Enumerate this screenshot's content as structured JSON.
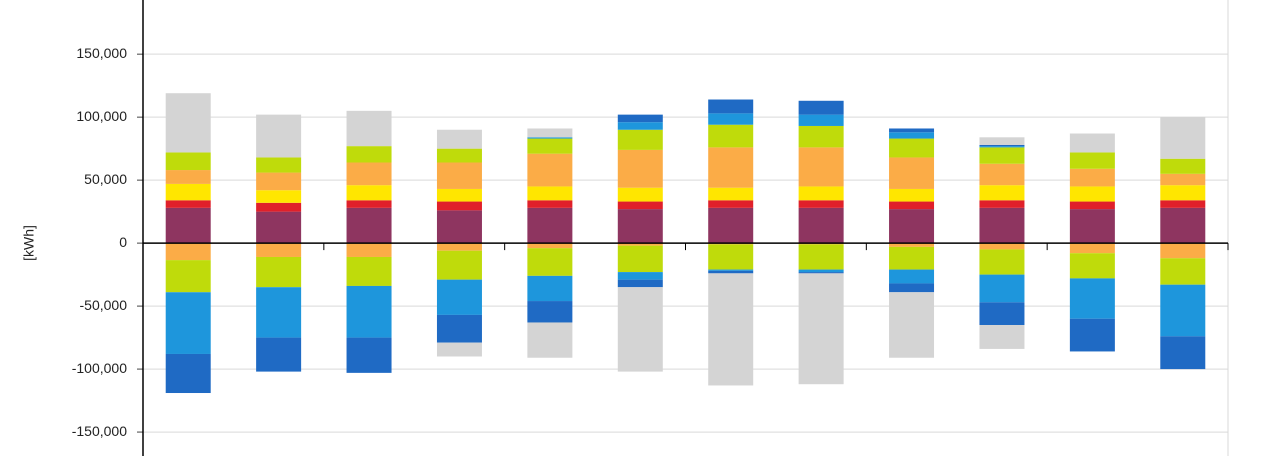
{
  "chart_data": {
    "type": "stacked_bar",
    "y_label": "[kWh]",
    "categories": [
      null,
      null,
      null,
      null,
      null,
      null,
      null,
      null,
      null,
      null,
      null,
      null
    ],
    "ylim": [
      -169000,
      193000
    ],
    "yticks": [
      {
        "value": -150000,
        "label": "-150,000"
      },
      {
        "value": -100000,
        "label": "-100,000"
      },
      {
        "value": -50000,
        "label": "-50,000"
      },
      0,
      {
        "value": 50000,
        "label": "50,000"
      },
      {
        "value": 100000,
        "label": "100,000"
      },
      {
        "value": 150000,
        "label": "150,000"
      }
    ],
    "grid": true,
    "series": [
      {
        "color": "#8e3560",
        "values": [
          28000,
          25000,
          28000,
          26000,
          28000,
          27000,
          28000,
          28000,
          27000,
          28000,
          27000,
          28000
        ]
      },
      {
        "color": "#e0202a",
        "values": [
          6000,
          7000,
          6000,
          7000,
          6000,
          6000,
          6000,
          6000,
          6000,
          6000,
          6000,
          6000
        ]
      },
      {
        "color": "#ffe600",
        "values": [
          13000,
          10000,
          12000,
          10000,
          11000,
          11000,
          10000,
          11000,
          10000,
          12000,
          12000,
          12000
        ]
      },
      {
        "color": "#fbac47",
        "values": [
          11000,
          14000,
          18000,
          21000,
          26000,
          30000,
          32000,
          31000,
          25000,
          17000,
          14000,
          9000
        ]
      },
      {
        "color": "#bfdb0b",
        "values": [
          14000,
          12000,
          13000,
          11000,
          12000,
          16000,
          18000,
          17000,
          15000,
          13000,
          13000,
          12000
        ]
      },
      {
        "color": "#1e96dc",
        "values": [
          0,
          0,
          0,
          0,
          1000,
          6000,
          9000,
          9000,
          5000,
          1000,
          0,
          0
        ]
      },
      {
        "color": "#1f6ac4",
        "values": [
          0,
          0,
          0,
          0,
          0,
          6000,
          11000,
          11000,
          3000,
          1000,
          0,
          0
        ]
      },
      {
        "color": "#d4d4d4",
        "values": [
          47000,
          34000,
          28000,
          15000,
          7000,
          0,
          0,
          0,
          0,
          6000,
          15000,
          33000
        ]
      },
      {
        "color": "#fbac47",
        "values": [
          -13500,
          -11000,
          -11000,
          -6000,
          -4000,
          -2000,
          -1000,
          -1000,
          -3000,
          -5000,
          -8000,
          -12000
        ]
      },
      {
        "color": "#bfdb0b",
        "values": [
          -25500,
          -24000,
          -23000,
          -23000,
          -22000,
          -21000,
          -20000,
          -20000,
          -18000,
          -20000,
          -20000,
          -21000
        ]
      },
      {
        "color": "#1e96dc",
        "values": [
          -49000,
          -40000,
          -41000,
          -28000,
          -20000,
          -6000,
          -1000,
          -2000,
          -11000,
          -22000,
          -32000,
          -41000
        ]
      },
      {
        "color": "#1f6ac4",
        "values": [
          -31000,
          -27000,
          -28000,
          -22000,
          -17000,
          -6000,
          -2000,
          -1000,
          -7000,
          -18000,
          -26000,
          -26000
        ]
      },
      {
        "color": "#d4d4d4",
        "values": [
          0,
          0,
          0,
          -11000,
          -28000,
          -67000,
          -89000,
          -88000,
          -52000,
          -19000,
          0,
          0
        ]
      }
    ]
  }
}
